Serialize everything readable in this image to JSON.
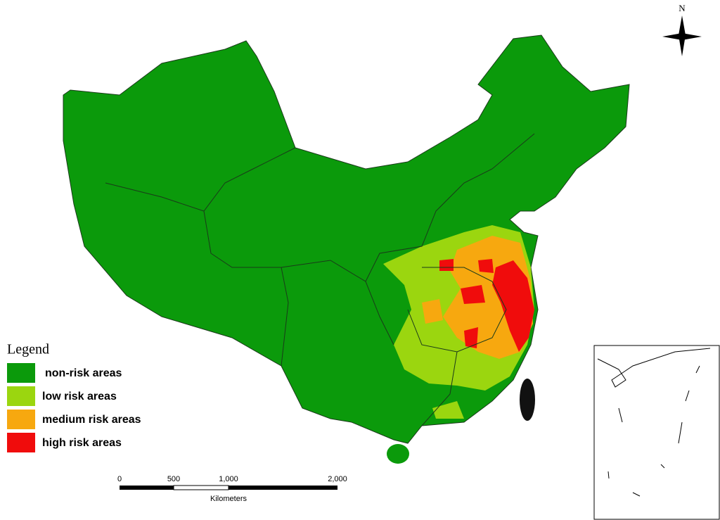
{
  "legend": {
    "title": "Legend",
    "items": [
      {
        "label": "non-risk areas",
        "color": "#0b9a0b"
      },
      {
        "label": "low risk areas",
        "color": "#9bd60f"
      },
      {
        "label": "medium risk areas",
        "color": "#f7a80f"
      },
      {
        "label": "high risk areas",
        "color": "#f00c0c"
      }
    ]
  },
  "scale_bar": {
    "ticks": [
      "0",
      "500",
      "1,000",
      "2,000"
    ],
    "unit": "Kilometers"
  },
  "north_arrow": {
    "label": "N"
  }
}
